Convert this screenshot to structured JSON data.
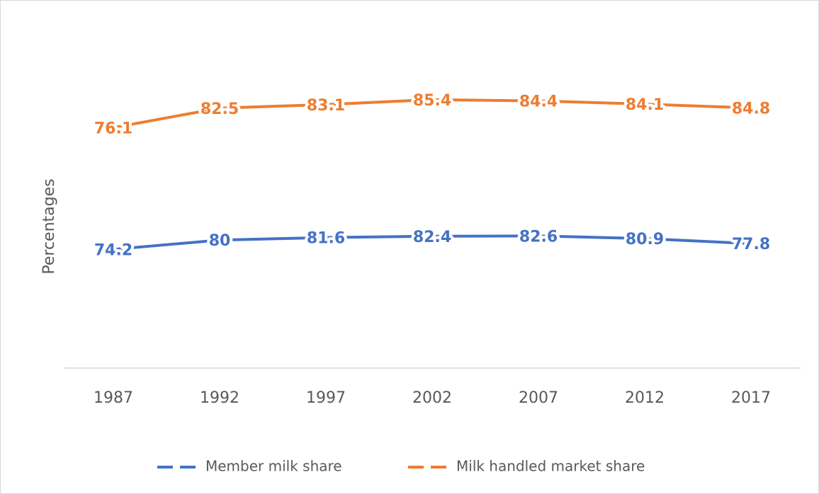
{
  "chart_data": {
    "type": "line",
    "stacked": true,
    "y_label": "Percentages",
    "categories": [
      "1987",
      "1992",
      "1997",
      "2002",
      "2007",
      "2012",
      "2017"
    ],
    "series": [
      {
        "name": "Member milk share",
        "color": "#4472c4",
        "values": [
          74.2,
          80,
          81.6,
          82.4,
          82.6,
          80.9,
          77.8
        ]
      },
      {
        "name": "Milk handled market share",
        "color": "#ed7d31",
        "values": [
          76.1,
          82.5,
          83.1,
          85.4,
          84.4,
          84.1,
          84.8
        ]
      }
    ],
    "ylim": [
      0,
      200
    ],
    "legend": "bottom"
  }
}
